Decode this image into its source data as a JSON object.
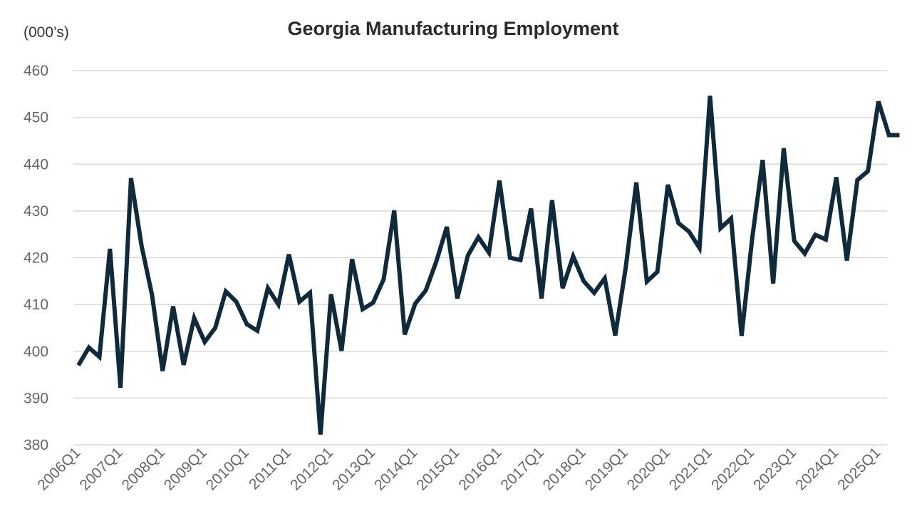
{
  "chart_data": {
    "type": "line",
    "title": "Georgia Manufacturing Employment",
    "unit_label": "(000’s)",
    "xlabel": "",
    "ylabel": "",
    "ylim": [
      380,
      460
    ],
    "yticks": [
      380,
      390,
      400,
      410,
      420,
      430,
      440,
      450,
      460
    ],
    "grid": true,
    "legend": "none",
    "line_color": "#0e2a3b",
    "x_tick_labels": [
      "2006Q1",
      "2007Q1",
      "2008Q1",
      "2009Q1",
      "2010Q1",
      "2011Q1",
      "2012Q1",
      "2013Q1",
      "2014Q1",
      "2015Q1",
      "2016Q1",
      "2017Q1",
      "2018Q1",
      "2019Q1",
      "2020Q1",
      "2021Q1",
      "2022Q1",
      "2023Q1",
      "2024Q1",
      "2025Q1"
    ],
    "x": [
      "2006Q1",
      "2006Q2",
      "2006Q3",
      "2006Q4",
      "2007Q1",
      "2007Q2",
      "2007Q3",
      "2007Q4",
      "2008Q1",
      "2008Q2",
      "2008Q3",
      "2008Q4",
      "2009Q1",
      "2009Q2",
      "2009Q3",
      "2009Q4",
      "2010Q1",
      "2010Q2",
      "2010Q3",
      "2010Q4",
      "2011Q1",
      "2011Q2",
      "2011Q3",
      "2011Q4",
      "2012Q1",
      "2012Q2",
      "2012Q3",
      "2012Q4",
      "2013Q1",
      "2013Q2",
      "2013Q3",
      "2013Q4",
      "2014Q1",
      "2014Q2",
      "2014Q3",
      "2014Q4",
      "2015Q1",
      "2015Q2",
      "2015Q3",
      "2015Q4",
      "2016Q1",
      "2016Q2",
      "2016Q3",
      "2016Q4",
      "2017Q1",
      "2017Q2",
      "2017Q3",
      "2017Q4",
      "2018Q1",
      "2018Q2",
      "2018Q3",
      "2018Q4",
      "2019Q1",
      "2019Q2",
      "2019Q3",
      "2019Q4",
      "2020Q1",
      "2020Q2",
      "2020Q3",
      "2020Q4",
      "2021Q1",
      "2021Q2",
      "2021Q3",
      "2021Q4",
      "2022Q1",
      "2022Q2",
      "2022Q3",
      "2022Q4",
      "2023Q1",
      "2023Q2",
      "2023Q3",
      "2023Q4",
      "2024Q1",
      "2024Q2",
      "2024Q3",
      "2024Q4",
      "2025Q1",
      "2025Q2",
      "2025Q3"
    ],
    "series": [
      {
        "values": [
          397.0,
          400.8,
          398.8,
          421.9,
          392.2,
          437.0,
          422.6,
          412.0,
          395.8,
          409.6,
          397.1,
          407.1,
          402.0,
          405.0,
          412.8,
          410.6,
          405.8,
          404.4,
          413.5,
          410.0,
          420.7,
          410.6,
          412.5,
          382.2,
          412.2,
          400.1,
          419.7,
          409.0,
          410.4,
          415.4,
          430.1,
          403.6,
          410.2,
          413.0,
          419.2,
          426.6,
          411.3,
          420.5,
          424.4,
          421.1,
          436.5,
          420.0,
          419.5,
          430.5,
          411.3,
          432.3,
          413.5,
          420.3,
          415.0,
          412.5,
          415.6,
          403.4,
          418.0,
          436.1,
          414.9,
          417.0,
          435.6,
          427.4,
          425.6,
          422.1,
          454.6,
          426.3,
          428.4,
          403.3,
          424.0,
          440.9,
          414.5,
          443.4,
          423.6,
          420.9,
          424.9,
          423.9,
          437.2,
          419.4,
          436.6,
          438.5,
          453.4,
          446.2,
          446.2
        ]
      }
    ]
  }
}
